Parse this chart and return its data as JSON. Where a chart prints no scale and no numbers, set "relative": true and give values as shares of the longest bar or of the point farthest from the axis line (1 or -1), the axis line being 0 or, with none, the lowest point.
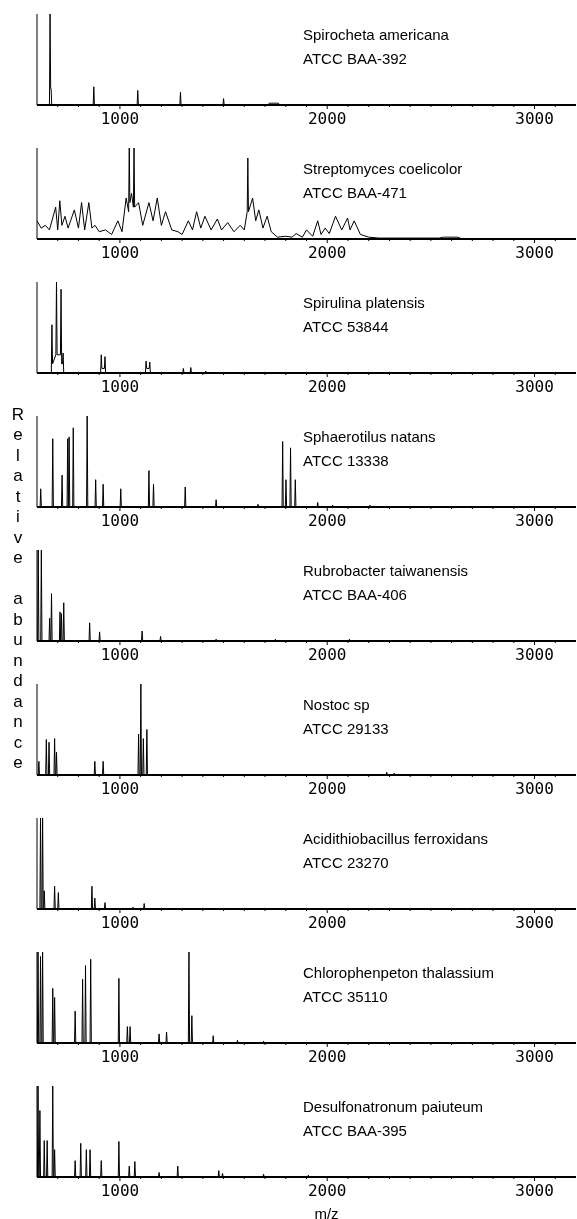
{
  "chart_data": [
    {
      "type": "line",
      "title": "Spirocheta americana",
      "subtitle": "ATCC BAA-392",
      "relative": true,
      "xlim": [
        600,
        3200
      ],
      "xticks": [
        {
          "value": 700,
          "label": null
        },
        {
          "value": 800,
          "label": null
        },
        {
          "value": 900,
          "label": null
        },
        1000,
        {
          "value": 1100,
          "label": null
        },
        {
          "value": 1200,
          "label": null
        },
        {
          "value": 1300,
          "label": null
        },
        {
          "value": 1400,
          "label": null
        },
        {
          "value": 1500,
          "label": null
        },
        {
          "value": 1600,
          "label": null
        },
        {
          "value": 1700,
          "label": null
        },
        {
          "value": 1800,
          "label": null
        },
        {
          "value": 1900,
          "label": null
        },
        2000,
        {
          "value": 2100,
          "label": null
        },
        {
          "value": 2200,
          "label": null
        },
        {
          "value": 2300,
          "label": null
        },
        {
          "value": 2400,
          "label": null
        },
        {
          "value": 2500,
          "label": null
        },
        {
          "value": 2600,
          "label": null
        },
        {
          "value": 2700,
          "label": null
        },
        {
          "value": 2800,
          "label": null
        },
        {
          "value": 2900,
          "label": null
        },
        3000,
        {
          "value": 3100,
          "label": null
        }
      ],
      "series": [
        {
          "color": "#000000",
          "x": [
            600,
            660,
            663,
            666,
            668,
            671,
            871,
            874,
            877,
            1083,
            1086,
            1089,
            1289,
            1292,
            1295,
            1497,
            1500,
            1503,
            1715,
            1720,
            1765,
            1770,
            3200
          ],
          "values": [
            0,
            0,
            1,
            0.18,
            0.18,
            0,
            0,
            0.2,
            0,
            0,
            0.16,
            0,
            0,
            0.14,
            0,
            0,
            0.07,
            0,
            0,
            0.02,
            0.02,
            0,
            0
          ]
        }
      ]
    },
    {
      "type": "line",
      "title": "Streptomyces coelicolor",
      "subtitle": "ATCC BAA-471",
      "relative": true,
      "xlim": [
        600,
        3200
      ],
      "xticks": [
        {
          "value": 700,
          "label": null
        },
        {
          "value": 800,
          "label": null
        },
        {
          "value": 900,
          "label": null
        },
        1000,
        {
          "value": 1100,
          "label": null
        },
        {
          "value": 1200,
          "label": null
        },
        {
          "value": 1300,
          "label": null
        },
        {
          "value": 1400,
          "label": null
        },
        {
          "value": 1500,
          "label": null
        },
        {
          "value": 1600,
          "label": null
        },
        {
          "value": 1700,
          "label": null
        },
        {
          "value": 1800,
          "label": null
        },
        {
          "value": 1900,
          "label": null
        },
        2000,
        {
          "value": 2100,
          "label": null
        },
        {
          "value": 2200,
          "label": null
        },
        {
          "value": 2300,
          "label": null
        },
        {
          "value": 2400,
          "label": null
        },
        {
          "value": 2500,
          "label": null
        },
        {
          "value": 2600,
          "label": null
        },
        {
          "value": 2700,
          "label": null
        },
        {
          "value": 2800,
          "label": null
        },
        {
          "value": 2900,
          "label": null
        },
        3000,
        {
          "value": 3100,
          "label": null
        }
      ],
      "series": [
        {
          "color": "#000000",
          "x": [
            600,
            620,
            640,
            660,
            690,
            700,
            710,
            720,
            735,
            750,
            780,
            800,
            815,
            830,
            850,
            865,
            880,
            900,
            930,
            960,
            990,
            1010,
            1030,
            1042,
            1045,
            1048,
            1056,
            1065,
            1068,
            1071,
            1090,
            1110,
            1140,
            1160,
            1180,
            1200,
            1220,
            1250,
            1280,
            1300,
            1330,
            1350,
            1370,
            1390,
            1410,
            1440,
            1470,
            1490,
            1520,
            1550,
            1580,
            1600,
            1614,
            1617,
            1620,
            1640,
            1655,
            1670,
            1690,
            1710,
            1730,
            1760,
            1800,
            1830,
            1850,
            1880,
            1900,
            1930,
            1954,
            1970,
            1990,
            2010,
            2040,
            2070,
            2098,
            2110,
            2130,
            2160,
            2200,
            2250,
            2540,
            2560,
            2630,
            2650,
            3200
          ],
          "values": [
            0.2,
            0.12,
            0.15,
            0.1,
            0.35,
            0.1,
            0.42,
            0.15,
            0.25,
            0.12,
            0.32,
            0.12,
            0.4,
            0.1,
            0.4,
            0.12,
            0.15,
            0.08,
            0.1,
            0.05,
            0.2,
            0.08,
            0.45,
            0.3,
            1,
            0.4,
            0.5,
            0.35,
            1,
            0.35,
            0.4,
            0.15,
            0.4,
            0.2,
            0.45,
            0.15,
            0.3,
            0.1,
            0.08,
            0.05,
            0.2,
            0.1,
            0.3,
            0.12,
            0.25,
            0.1,
            0.22,
            0.1,
            0.18,
            0.08,
            0.15,
            0.1,
            0.3,
            0.89,
            0.3,
            0.45,
            0.2,
            0.32,
            0.12,
            0.25,
            0.08,
            0.02,
            0.03,
            0.02,
            0.06,
            0.02,
            0.1,
            0.03,
            0.2,
            0.05,
            0.12,
            0.06,
            0.25,
            0.1,
            0.23,
            0.1,
            0.2,
            0.05,
            0.02,
            0.01,
            0.01,
            0.02,
            0.02,
            0,
            0
          ]
        }
      ]
    },
    {
      "type": "line",
      "title": "Spirulina platensis",
      "subtitle": "ATCC 53844",
      "relative": true,
      "xlim": [
        600,
        3200
      ],
      "xticks": [
        {
          "value": 700,
          "label": null
        },
        {
          "value": 800,
          "label": null
        },
        {
          "value": 900,
          "label": null
        },
        1000,
        {
          "value": 1100,
          "label": null
        },
        {
          "value": 1200,
          "label": null
        },
        {
          "value": 1300,
          "label": null
        },
        {
          "value": 1400,
          "label": null
        },
        {
          "value": 1500,
          "label": null
        },
        {
          "value": 1600,
          "label": null
        },
        {
          "value": 1700,
          "label": null
        },
        {
          "value": 1800,
          "label": null
        },
        {
          "value": 1900,
          "label": null
        },
        2000,
        {
          "value": 2100,
          "label": null
        },
        {
          "value": 2200,
          "label": null
        },
        {
          "value": 2300,
          "label": null
        },
        {
          "value": 2400,
          "label": null
        },
        {
          "value": 2500,
          "label": null
        },
        {
          "value": 2600,
          "label": null
        },
        {
          "value": 2700,
          "label": null
        },
        {
          "value": 2800,
          "label": null
        },
        {
          "value": 2900,
          "label": null
        },
        3000,
        {
          "value": 3100,
          "label": null
        }
      ],
      "series": [
        {
          "color": "#000000",
          "x": [
            600,
            669,
            672,
            675,
            691,
            694,
            697,
            713,
            716,
            719,
            723,
            726,
            729,
            907,
            910,
            913,
            925,
            928,
            931,
            1123,
            1126,
            1129,
            1141,
            1144,
            1147,
            1303,
            1306,
            1309,
            1339,
            1342,
            1345,
            1411,
            1414,
            1417,
            3200
          ],
          "values": [
            0,
            0,
            0.53,
            0.1,
            0.2,
            1,
            0.2,
            0.2,
            0.92,
            0.1,
            0.1,
            0.22,
            0,
            0,
            0.2,
            0.05,
            0.05,
            0.18,
            0,
            0,
            0.13,
            0.05,
            0.05,
            0.12,
            0,
            0,
            0.05,
            0,
            0,
            0.06,
            0,
            0,
            0.02,
            0,
            0
          ]
        }
      ]
    },
    {
      "type": "line",
      "title": "Sphaerotilus natans",
      "subtitle": "ATCC 13338",
      "relative": true,
      "xlim": [
        600,
        3200
      ],
      "xticks": [
        {
          "value": 700,
          "label": null
        },
        {
          "value": 800,
          "label": null
        },
        {
          "value": 900,
          "label": null
        },
        1000,
        {
          "value": 1100,
          "label": null
        },
        {
          "value": 1200,
          "label": null
        },
        {
          "value": 1300,
          "label": null
        },
        {
          "value": 1400,
          "label": null
        },
        {
          "value": 1500,
          "label": null
        },
        {
          "value": 1600,
          "label": null
        },
        {
          "value": 1700,
          "label": null
        },
        {
          "value": 1800,
          "label": null
        },
        {
          "value": 1900,
          "label": null
        },
        2000,
        {
          "value": 2100,
          "label": null
        },
        {
          "value": 2200,
          "label": null
        },
        {
          "value": 2300,
          "label": null
        },
        {
          "value": 2400,
          "label": null
        },
        {
          "value": 2500,
          "label": null
        },
        {
          "value": 2600,
          "label": null
        },
        {
          "value": 2700,
          "label": null
        },
        {
          "value": 2800,
          "label": null
        },
        {
          "value": 2900,
          "label": null
        },
        3000,
        {
          "value": 3100,
          "label": null
        }
      ],
      "series": [
        {
          "color": "#000000",
          "x": [
            600,
            615,
            618,
            621,
            673,
            676,
            679,
            718,
            721,
            724,
            745,
            748,
            751,
            752,
            755,
            758,
            772,
            775,
            778,
            839,
            842,
            845,
            880,
            883,
            886,
            916,
            919,
            922,
            1001,
            1004,
            1007,
            1137,
            1140,
            1143,
            1159,
            1162,
            1165,
            1312,
            1315,
            1318,
            1461,
            1464,
            1467,
            1663,
            1666,
            1669,
            1782,
            1785,
            1788,
            1798,
            1801,
            1804,
            1820,
            1823,
            1826,
            1843,
            1846,
            1849,
            1951,
            1954,
            1957,
            2023,
            2026,
            2029,
            2203,
            2206,
            2209,
            3200
          ],
          "values": [
            0,
            0,
            0.2,
            0,
            0,
            0.75,
            0,
            0,
            0.35,
            0,
            0,
            0.75,
            0,
            0,
            0.77,
            0,
            0,
            0.87,
            0,
            0,
            1,
            0,
            0,
            0.3,
            0,
            0,
            0.25,
            0,
            0,
            0.2,
            0,
            0,
            0.4,
            0,
            0,
            0.25,
            0,
            0,
            0.22,
            0,
            0,
            0.08,
            0,
            0,
            0.03,
            0,
            0,
            0.72,
            0,
            0,
            0.3,
            0,
            0,
            0.65,
            0,
            0,
            0.3,
            0,
            0,
            0.05,
            0,
            0,
            0.02,
            0,
            0,
            0.02,
            0,
            0
          ]
        }
      ]
    },
    {
      "type": "line",
      "title": "Rubrobacter taiwanensis",
      "subtitle": "ATCC BAA-406",
      "ylabel": "Relative abundance",
      "relative": true,
      "xlim": [
        600,
        3200
      ],
      "xticks": [
        {
          "value": 700,
          "label": null
        },
        {
          "value": 800,
          "label": null
        },
        {
          "value": 900,
          "label": null
        },
        1000,
        {
          "value": 1100,
          "label": null
        },
        {
          "value": 1200,
          "label": null
        },
        {
          "value": 1300,
          "label": null
        },
        {
          "value": 1400,
          "label": null
        },
        {
          "value": 1500,
          "label": null
        },
        {
          "value": 1600,
          "label": null
        },
        {
          "value": 1700,
          "label": null
        },
        {
          "value": 1800,
          "label": null
        },
        {
          "value": 1900,
          "label": null
        },
        2000,
        {
          "value": 2100,
          "label": null
        },
        {
          "value": 2200,
          "label": null
        },
        {
          "value": 2300,
          "label": null
        },
        {
          "value": 2400,
          "label": null
        },
        {
          "value": 2500,
          "label": null
        },
        {
          "value": 2600,
          "label": null
        },
        {
          "value": 2700,
          "label": null
        },
        {
          "value": 2800,
          "label": null
        },
        {
          "value": 2900,
          "label": null
        },
        3000,
        {
          "value": 3100,
          "label": null
        }
      ],
      "series": [
        {
          "color": "#000000",
          "x": [
            600,
            603,
            606,
            609,
            618,
            621,
            624,
            658,
            661,
            664,
            667,
            670,
            673,
            708,
            711,
            714,
            715,
            718,
            721,
            726,
            729,
            732,
            851,
            854,
            857,
            899,
            902,
            905,
            1104,
            1107,
            1110,
            1193,
            1196,
            1199,
            1461,
            1464,
            1467,
            1747,
            1750,
            1753,
            2104,
            2107,
            2110,
            3200
          ],
          "values": [
            0,
            0,
            1,
            0,
            0,
            1,
            0,
            0,
            0.25,
            0,
            0,
            0.52,
            0,
            0,
            0.32,
            0,
            0,
            0.3,
            0,
            0,
            0.42,
            0,
            0,
            0.2,
            0,
            0,
            0.1,
            0,
            0,
            0.11,
            0,
            0,
            0.05,
            0,
            0,
            0.02,
            0,
            0,
            0.02,
            0,
            0,
            0.02,
            0,
            0
          ]
        }
      ]
    },
    {
      "type": "line",
      "title": "Nostoc sp",
      "subtitle": "ATCC 29133",
      "relative": true,
      "xlim": [
        600,
        3200
      ],
      "xticks": [
        {
          "value": 700,
          "label": null
        },
        {
          "value": 800,
          "label": null
        },
        {
          "value": 900,
          "label": null
        },
        1000,
        {
          "value": 1100,
          "label": null
        },
        {
          "value": 1200,
          "label": null
        },
        {
          "value": 1300,
          "label": null
        },
        {
          "value": 1400,
          "label": null
        },
        {
          "value": 1500,
          "label": null
        },
        {
          "value": 1600,
          "label": null
        },
        {
          "value": 1700,
          "label": null
        },
        {
          "value": 1800,
          "label": null
        },
        {
          "value": 1900,
          "label": null
        },
        2000,
        {
          "value": 2100,
          "label": null
        },
        {
          "value": 2200,
          "label": null
        },
        {
          "value": 2300,
          "label": null
        },
        {
          "value": 2400,
          "label": null
        },
        {
          "value": 2500,
          "label": null
        },
        {
          "value": 2600,
          "label": null
        },
        {
          "value": 2700,
          "label": null
        },
        {
          "value": 2800,
          "label": null
        },
        {
          "value": 2900,
          "label": null
        },
        3000,
        {
          "value": 3100,
          "label": null
        }
      ],
      "series": [
        {
          "color": "#000000",
          "x": [
            600,
            606,
            609,
            612,
            642,
            645,
            648,
            655,
            658,
            661,
            682,
            685,
            688,
            691,
            694,
            697,
            876,
            879,
            882,
            916,
            919,
            922,
            1087,
            1090,
            1093,
            1098,
            1101,
            1104,
            1110,
            1113,
            1116,
            1127,
            1130,
            1133,
            2284,
            2287,
            2290,
            2320,
            2323,
            2326,
            3200
          ],
          "values": [
            0,
            0,
            0.15,
            0,
            0,
            0.39,
            0,
            0,
            0.36,
            0,
            0,
            0.4,
            0,
            0,
            0.25,
            0,
            0,
            0.15,
            0,
            0,
            0.15,
            0,
            0,
            0.45,
            0,
            0,
            1,
            0,
            0,
            0.4,
            0,
            0,
            0.5,
            0,
            0,
            0.03,
            0,
            0,
            0.02,
            0,
            0
          ]
        }
      ]
    },
    {
      "type": "line",
      "title": "Acidithiobacillus ferroxidans",
      "subtitle": "ATCC 23270",
      "relative": true,
      "xlim": [
        600,
        3200
      ],
      "xticks": [
        {
          "value": 700,
          "label": null
        },
        {
          "value": 800,
          "label": null
        },
        {
          "value": 900,
          "label": null
        },
        1000,
        {
          "value": 1100,
          "label": null
        },
        {
          "value": 1200,
          "label": null
        },
        {
          "value": 1300,
          "label": null
        },
        {
          "value": 1400,
          "label": null
        },
        {
          "value": 1500,
          "label": null
        },
        {
          "value": 1600,
          "label": null
        },
        {
          "value": 1700,
          "label": null
        },
        {
          "value": 1800,
          "label": null
        },
        {
          "value": 1900,
          "label": null
        },
        2000,
        {
          "value": 2100,
          "label": null
        },
        {
          "value": 2200,
          "label": null
        },
        {
          "value": 2300,
          "label": null
        },
        {
          "value": 2400,
          "label": null
        },
        {
          "value": 2500,
          "label": null
        },
        {
          "value": 2600,
          "label": null
        },
        {
          "value": 2700,
          "label": null
        },
        {
          "value": 2800,
          "label": null
        },
        {
          "value": 2900,
          "label": null
        },
        3000,
        {
          "value": 3100,
          "label": null
        }
      ],
      "series": [
        {
          "color": "#000000",
          "x": [
            600,
            614,
            617,
            620,
            624,
            627,
            630,
            632,
            635,
            638,
            682,
            685,
            688,
            700,
            703,
            706,
            862,
            865,
            868,
            876,
            879,
            882,
            925,
            928,
            931,
            1060,
            1063,
            1066,
            1114,
            1117,
            1120,
            3200
          ],
          "values": [
            0,
            0,
            1,
            0,
            0,
            1,
            0,
            0,
            0.2,
            0,
            0,
            0.25,
            0,
            0,
            0.18,
            0,
            0,
            0.25,
            0,
            0,
            0.12,
            0,
            0,
            0.07,
            0,
            0,
            0.02,
            0,
            0,
            0.06,
            0,
            0
          ]
        }
      ]
    },
    {
      "type": "line",
      "title": "Chlorophenpeton thalassium",
      "subtitle": "ATCC 35110",
      "relative": true,
      "xlim": [
        600,
        3200
      ],
      "xticks": [
        {
          "value": 700,
          "label": null
        },
        {
          "value": 800,
          "label": null
        },
        {
          "value": 900,
          "label": null
        },
        1000,
        {
          "value": 1100,
          "label": null
        },
        {
          "value": 1200,
          "label": null
        },
        {
          "value": 1300,
          "label": null
        },
        {
          "value": 1400,
          "label": null
        },
        {
          "value": 1500,
          "label": null
        },
        {
          "value": 1600,
          "label": null
        },
        {
          "value": 1700,
          "label": null
        },
        {
          "value": 1800,
          "label": null
        },
        {
          "value": 1900,
          "label": null
        },
        2000,
        {
          "value": 2100,
          "label": null
        },
        {
          "value": 2200,
          "label": null
        },
        {
          "value": 2300,
          "label": null
        },
        {
          "value": 2400,
          "label": null
        },
        {
          "value": 2500,
          "label": null
        },
        {
          "value": 2600,
          "label": null
        },
        {
          "value": 2700,
          "label": null
        },
        {
          "value": 2800,
          "label": null
        },
        {
          "value": 2900,
          "label": null
        },
        3000,
        {
          "value": 3100,
          "label": null
        }
      ],
      "series": [
        {
          "color": "#000000",
          "x": [
            600,
            602,
            605,
            608,
            614,
            617,
            620,
            624,
            627,
            630,
            673,
            676,
            679,
            682,
            685,
            688,
            781,
            784,
            787,
            817,
            820,
            823,
            831,
            834,
            837,
            856,
            859,
            862,
            992,
            995,
            998,
            1033,
            1036,
            1039,
            1046,
            1049,
            1052,
            1186,
            1189,
            1192,
            1222,
            1225,
            1228,
            1330,
            1333,
            1336,
            1344,
            1347,
            1350,
            1447,
            1450,
            1453,
            1564,
            1567,
            1570,
            1690,
            1693,
            1696,
            3200
          ],
          "values": [
            0,
            0,
            1,
            0,
            0,
            0.95,
            0,
            0,
            1,
            0,
            0,
            0.6,
            0,
            0,
            0.5,
            0,
            0,
            0.35,
            0,
            0,
            0.7,
            0,
            0,
            0.85,
            0,
            0,
            0.92,
            0,
            0,
            0.71,
            0,
            0,
            0.18,
            0,
            0,
            0.18,
            0,
            0,
            0.1,
            0,
            0,
            0.12,
            0,
            0,
            1,
            0,
            0,
            0.3,
            0,
            0,
            0.08,
            0,
            0,
            0.03,
            0,
            0,
            0.02,
            0,
            0
          ]
        }
      ]
    },
    {
      "type": "line",
      "title": "Desulfonatronum paiuteum",
      "subtitle": "ATCC BAA-395",
      "xlabel": "m/z",
      "relative": true,
      "xlim": [
        600,
        3200
      ],
      "xticks": [
        {
          "value": 700,
          "label": null
        },
        {
          "value": 800,
          "label": null
        },
        {
          "value": 900,
          "label": null
        },
        1000,
        {
          "value": 1100,
          "label": null
        },
        {
          "value": 1200,
          "label": null
        },
        {
          "value": 1300,
          "label": null
        },
        {
          "value": 1400,
          "label": null
        },
        {
          "value": 1500,
          "label": null
        },
        {
          "value": 1600,
          "label": null
        },
        {
          "value": 1700,
          "label": null
        },
        {
          "value": 1800,
          "label": null
        },
        {
          "value": 1900,
          "label": null
        },
        2000,
        {
          "value": 2100,
          "label": null
        },
        {
          "value": 2200,
          "label": null
        },
        {
          "value": 2300,
          "label": null
        },
        {
          "value": 2400,
          "label": null
        },
        {
          "value": 2500,
          "label": null
        },
        {
          "value": 2600,
          "label": null
        },
        {
          "value": 2700,
          "label": null
        },
        {
          "value": 2800,
          "label": null
        },
        {
          "value": 2900,
          "label": null
        },
        3000,
        {
          "value": 3100,
          "label": null
        }
      ],
      "series": [
        {
          "color": "#000000",
          "x": [
            600,
            602,
            605,
            608,
            611,
            614,
            617,
            632,
            635,
            638,
            646,
            649,
            652,
            673,
            676,
            679,
            682,
            685,
            688,
            781,
            784,
            787,
            808,
            811,
            814,
            835,
            838,
            841,
            853,
            856,
            859,
            907,
            910,
            913,
            992,
            995,
            998,
            1042,
            1045,
            1048,
            1069,
            1072,
            1075,
            1186,
            1189,
            1192,
            1276,
            1279,
            1282,
            1474,
            1477,
            1480,
            1492,
            1495,
            1498,
            1690,
            1693,
            1696,
            1906,
            1909,
            1912,
            3200
          ],
          "values": [
            0,
            0,
            1,
            0,
            0,
            0.73,
            0,
            0,
            0.4,
            0,
            0,
            0.4,
            0,
            0,
            1,
            0,
            0,
            0.3,
            0,
            0,
            0.18,
            0,
            0,
            0.37,
            0,
            0,
            0.3,
            0,
            0,
            0.3,
            0,
            0,
            0.18,
            0,
            0,
            0.39,
            0,
            0,
            0.12,
            0,
            0,
            0.17,
            0,
            0,
            0.05,
            0,
            0,
            0.12,
            0,
            0,
            0.07,
            0,
            0,
            0.04,
            0,
            0,
            0.03,
            0,
            0,
            0.02,
            0,
            0
          ]
        }
      ]
    }
  ]
}
